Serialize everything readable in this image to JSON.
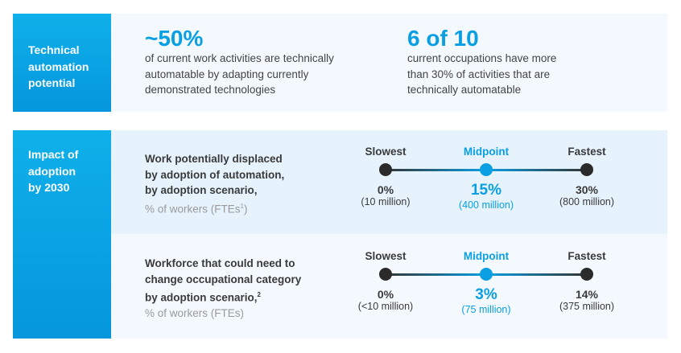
{
  "technical": {
    "label": [
      "Technical",
      "automation",
      "potential"
    ],
    "stat1": {
      "value": "~50%",
      "text": [
        "of current work activities are technically",
        "automatable by adapting currently",
        "demonstrated technologies"
      ]
    },
    "stat2": {
      "value": "6 of 10",
      "text": [
        "current occupations have more",
        "than 30% of activities that are",
        "technically automatable"
      ]
    }
  },
  "impact": {
    "label": [
      "Impact of",
      "adoption",
      "by 2030"
    ],
    "rows": [
      {
        "title": [
          "Work potentially displaced",
          "by adoption of automation,",
          "by adoption scenario,"
        ],
        "unit": "% of workers (FTEs",
        "unit_sup": "1",
        "unit_end": ")",
        "title_sup": "",
        "scenarios": [
          {
            "name": "Slowest",
            "value": "0%",
            "detail": "(10 million)"
          },
          {
            "name": "Midpoint",
            "value": "15%",
            "detail": "(400 million)"
          },
          {
            "name": "Fastest",
            "value": "30%",
            "detail": "(800 million)"
          }
        ]
      },
      {
        "title": [
          "Workforce that could need to",
          "change occupational category",
          "by adoption scenario,"
        ],
        "title_sup": "2",
        "unit": "% of workers (FTEs)",
        "unit_sup": "",
        "unit_end": "",
        "scenarios": [
          {
            "name": "Slowest",
            "value": "0%",
            "detail": "(<10 million)"
          },
          {
            "name": "Midpoint",
            "value": "3%",
            "detail": "(75 million)"
          },
          {
            "name": "Fastest",
            "value": "14%",
            "detail": "(375 million)"
          }
        ]
      }
    ]
  },
  "colors": {
    "accent": "#0a9fe3",
    "dark": "#2b2b2b",
    "panel_light": "#f3f9fe",
    "panel_blue": "#e6f3fc"
  }
}
